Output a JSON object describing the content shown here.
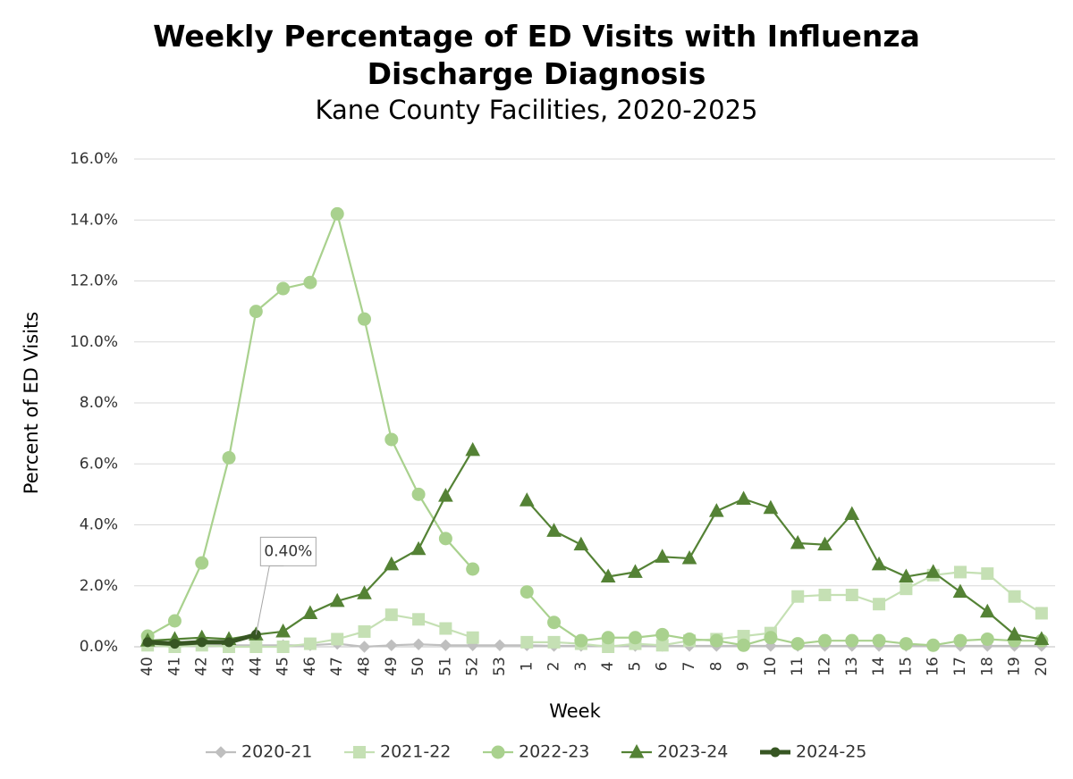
{
  "chart_data": {
    "type": "line",
    "title": "Weekly Percentage of ED Visits with Influenza Discharge Diagnosis",
    "subtitle": "Kane County Facilities, 2020-2025",
    "x_label": "Week",
    "y_label": "Percent of ED Visits",
    "categories": [
      "40",
      "41",
      "42",
      "43",
      "44",
      "45",
      "46",
      "47",
      "48",
      "49",
      "50",
      "51",
      "52",
      "53",
      "1",
      "2",
      "3",
      "4",
      "5",
      "6",
      "7",
      "8",
      "9",
      "10",
      "11",
      "12",
      "13",
      "14",
      "15",
      "16",
      "17",
      "18",
      "19",
      "20"
    ],
    "ylim": [
      0,
      16
    ],
    "yticks": [
      {
        "value": 0,
        "label": "0.0%"
      },
      {
        "value": 2,
        "label": "2.0%"
      },
      {
        "value": 4,
        "label": "4.0%"
      },
      {
        "value": 6,
        "label": "6.0%"
      },
      {
        "value": 8,
        "label": "8.0%"
      },
      {
        "value": 10,
        "label": "10.0%"
      },
      {
        "value": 12,
        "label": "12.0%"
      },
      {
        "value": 14,
        "label": "14.0%"
      },
      {
        "value": 16,
        "label": "16.0%"
      }
    ],
    "grid": true,
    "legend": "bottom",
    "series": [
      {
        "name": "2020-21",
        "color": "#bfbfbf",
        "marker": "diamond",
        "values": [
          0.05,
          0.05,
          0.05,
          0.05,
          0.05,
          0.05,
          0.05,
          0.1,
          0.0,
          0.05,
          0.08,
          0.05,
          0.05,
          0.05,
          0.05,
          0.03,
          0.03,
          0.03,
          0.03,
          0.03,
          0.03,
          0.03,
          0.03,
          0.03,
          0.03,
          0.03,
          0.03,
          0.03,
          0.03,
          0.03,
          0.03,
          0.03,
          0.03,
          0.03
        ]
      },
      {
        "name": "2021-22",
        "color": "#c5e0b4",
        "marker": "square",
        "values": [
          0.05,
          0.0,
          0.05,
          0.0,
          0.0,
          0.0,
          0.1,
          0.25,
          0.5,
          1.05,
          0.9,
          0.6,
          0.3,
          null,
          0.15,
          0.15,
          0.1,
          0.0,
          0.1,
          0.05,
          0.2,
          0.25,
          0.35,
          0.45,
          1.65,
          1.7,
          1.7,
          1.4,
          1.9,
          2.35,
          2.45,
          2.4,
          1.65,
          1.1
        ]
      },
      {
        "name": "2022-23",
        "color": "#a9d18e",
        "marker": "circle",
        "values": [
          0.35,
          0.85,
          2.75,
          6.2,
          11.0,
          11.75,
          11.95,
          14.2,
          10.75,
          6.8,
          5.0,
          3.55,
          2.55,
          null,
          1.8,
          0.8,
          0.2,
          0.3,
          0.3,
          0.4,
          0.25,
          0.2,
          0.05,
          0.3,
          0.1,
          0.2,
          0.2,
          0.2,
          0.1,
          0.05,
          0.2,
          0.25,
          0.2,
          0.2
        ]
      },
      {
        "name": "2023-24",
        "color": "#548235",
        "marker": "triangle",
        "values": [
          0.2,
          0.25,
          0.3,
          0.25,
          0.4,
          0.5,
          1.1,
          1.5,
          1.75,
          2.7,
          3.2,
          4.95,
          6.45,
          null,
          4.8,
          3.8,
          3.35,
          2.3,
          2.45,
          2.95,
          2.9,
          4.45,
          4.85,
          4.55,
          3.4,
          3.35,
          4.35,
          2.7,
          2.3,
          2.45,
          1.8,
          1.15,
          0.4,
          0.25
        ]
      },
      {
        "name": "2024-25",
        "color": "#375623",
        "marker": "dot",
        "values": [
          0.15,
          0.1,
          0.15,
          0.15,
          0.4,
          null,
          null,
          null,
          null,
          null,
          null,
          null,
          null,
          null,
          null,
          null,
          null,
          null,
          null,
          null,
          null,
          null,
          null,
          null,
          null,
          null,
          null,
          null,
          null,
          null,
          null,
          null,
          null,
          null
        ],
        "value_labels": [
          null,
          null,
          null,
          null,
          "0.40%",
          null,
          null,
          null,
          null,
          null,
          null,
          null,
          null,
          null,
          null,
          null,
          null,
          null,
          null,
          null,
          null,
          null,
          null,
          null,
          null,
          null,
          null,
          null,
          null,
          null,
          null,
          null,
          null,
          null
        ]
      }
    ]
  }
}
